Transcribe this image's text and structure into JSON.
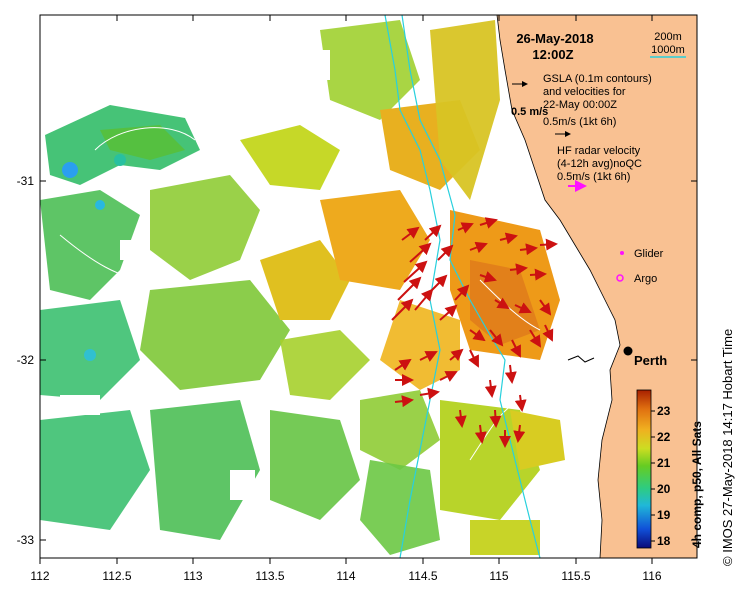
{
  "map": {
    "date": "26-May-2018",
    "time": "12:00Z",
    "place": "Perth",
    "lon_ticks": [
      "112",
      "112.5",
      "113",
      "113.5",
      "114",
      "114.5",
      "115",
      "115.5",
      "116"
    ],
    "lat_ticks": [
      "-31",
      "-32",
      "-33"
    ],
    "lon_range": [
      112,
      116.3
    ],
    "lat_range": [
      -33.1,
      -30.1
    ]
  },
  "legend": {
    "depth_200": "200m",
    "depth_1000": "1000m",
    "gsla_line1": "GSLA (0.1m contours)",
    "gsla_line2": "and velocities for",
    "gsla_line3": "22-May 00:00Z",
    "gsla_scale": "0.5m/s (1kt 6h)",
    "scale_bold": "0.5 m/s",
    "hf_line1": "HF radar velocity",
    "hf_line2": "(4-12h avg)noQC",
    "hf_scale": "0.5m/s (1kt 6h)",
    "glider": "Glider",
    "argo": "Argo"
  },
  "colorbar": {
    "ticks": [
      "23",
      "22",
      "21",
      "20",
      "19",
      "18"
    ],
    "label": "4h comp, p50, All Sats",
    "min": 17.7,
    "max": 23.8
  },
  "footer": {
    "copyright": "©",
    "credit": "IMOS 27-May-2018 14:17 Hobart Time"
  },
  "colors": {
    "land": "#f9c192",
    "arrow": "#cc1111",
    "contour": "#28d0dd",
    "legend_arrow": "#ff10ff"
  }
}
